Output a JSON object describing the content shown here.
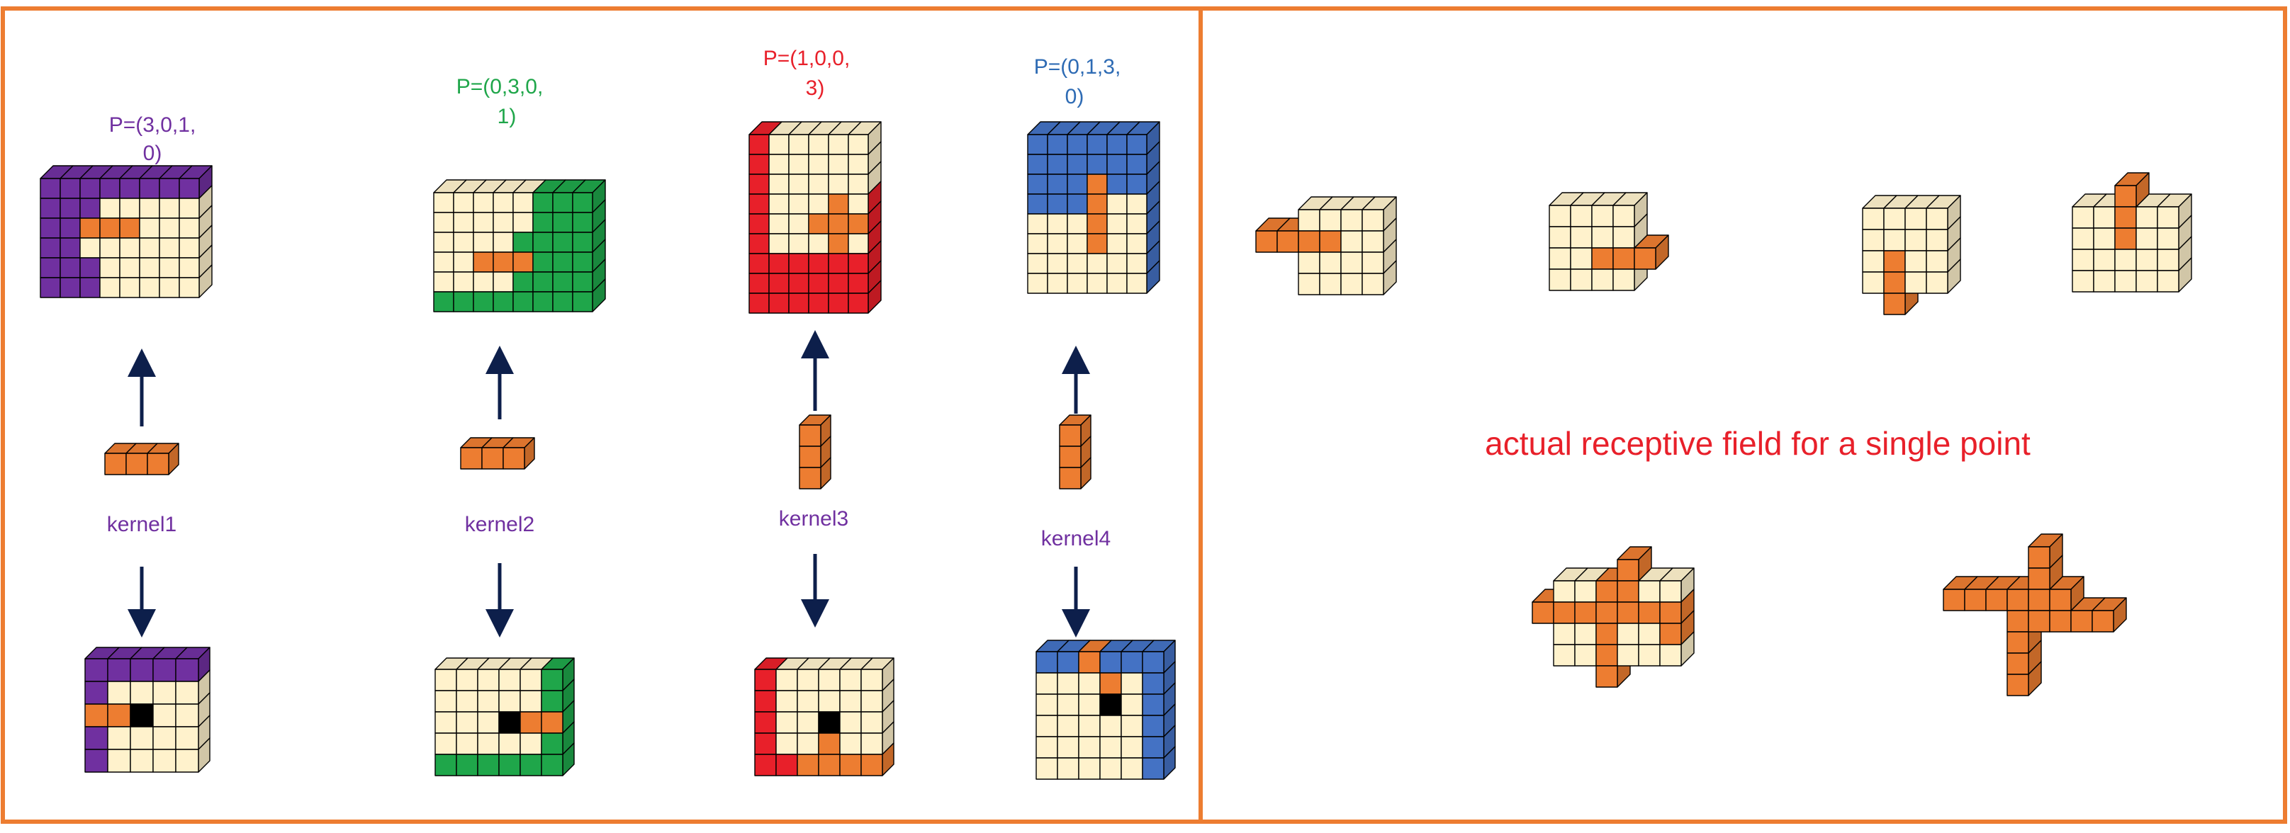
{
  "colors": {
    "frame": "#ED7D31",
    "cream": "#FFF2CC",
    "orange": "#ED7D31",
    "purple": "#7030A0",
    "green": "#1FA64A",
    "red": "#E8202A",
    "blue": "#4472C4",
    "black": "#000000",
    "arrow": "#0D1F4B",
    "caption": "#E8202A"
  },
  "kernels": [
    {
      "p_line1": "P=(3,0,1,",
      "p_line2": "0)",
      "label": "kernel1",
      "p_color": "#7030A0",
      "label_color": "#7030A0"
    },
    {
      "p_line1": "P=(0,3,0,",
      "p_line2": "1)",
      "label": "kernel2",
      "p_color": "#1FA64A",
      "label_color": "#7030A0"
    },
    {
      "p_line1": "P=(1,0,0,",
      "p_line2": "3)",
      "label": "kernel3",
      "p_color": "#E8202A",
      "label_color": "#7030A0"
    },
    {
      "p_line1": "P=(0,1,3,",
      "p_line2": "0)",
      "label": "kernel4",
      "p_color": "#2E6BB4",
      "label_color": "#7030A0"
    }
  ],
  "caption": "actual receptive field for a single point"
}
